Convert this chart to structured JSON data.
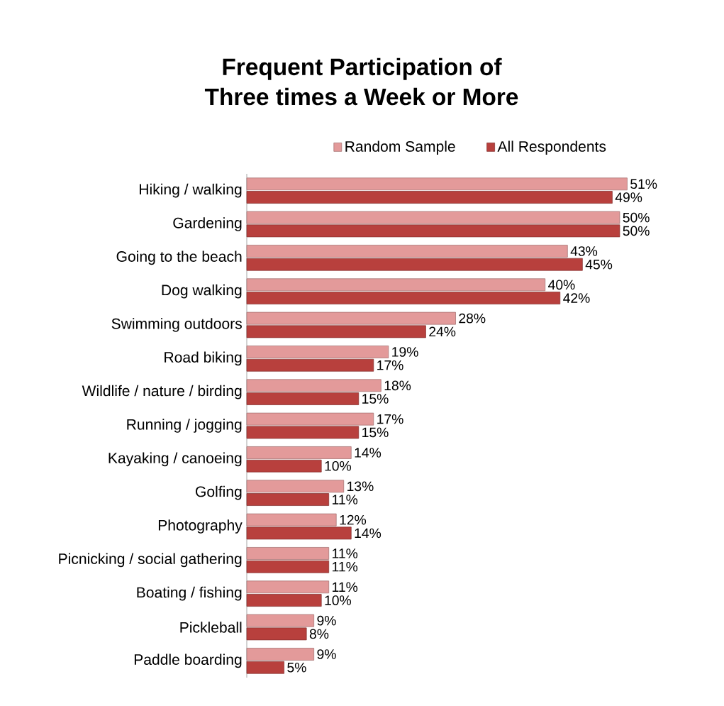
{
  "chart_data": {
    "type": "bar",
    "orientation": "horizontal",
    "title": "Frequent Participation of\nThree times a Week or More",
    "legend": "top",
    "categories": [
      "Hiking / walking",
      "Gardening",
      "Going to the beach",
      "Dog walking",
      "Swimming outdoors",
      "Road biking",
      "Wildlife / nature / birding",
      "Running / jogging",
      "Kayaking / canoeing",
      "Golfing",
      "Photography",
      "Picnicking / social gathering",
      "Boating / fishing",
      "Pickleball",
      "Paddle boarding"
    ],
    "series": [
      {
        "name": "Random Sample",
        "color": "#e39a9a",
        "values": [
          51,
          50,
          43,
          40,
          28,
          19,
          18,
          17,
          14,
          13,
          12,
          11,
          11,
          9,
          9
        ],
        "value_labels": [
          "51%",
          "50%",
          "43%",
          "40%",
          "28%",
          "19%",
          "18%",
          "17%",
          "14%",
          "13%",
          "12%",
          "11%",
          "11%",
          "9%",
          "9%"
        ]
      },
      {
        "name": "All Respondents",
        "color": "#b8403d",
        "values": [
          49,
          50,
          45,
          42,
          24,
          17,
          15,
          15,
          10,
          11,
          14,
          11,
          10,
          8,
          5
        ],
        "value_labels": [
          "49%",
          "50%",
          "45%",
          "42%",
          "24%",
          "17%",
          "15%",
          "15%",
          "10%",
          "11%",
          "14%",
          "11%",
          "10%",
          "8%",
          "5%"
        ]
      }
    ]
  }
}
